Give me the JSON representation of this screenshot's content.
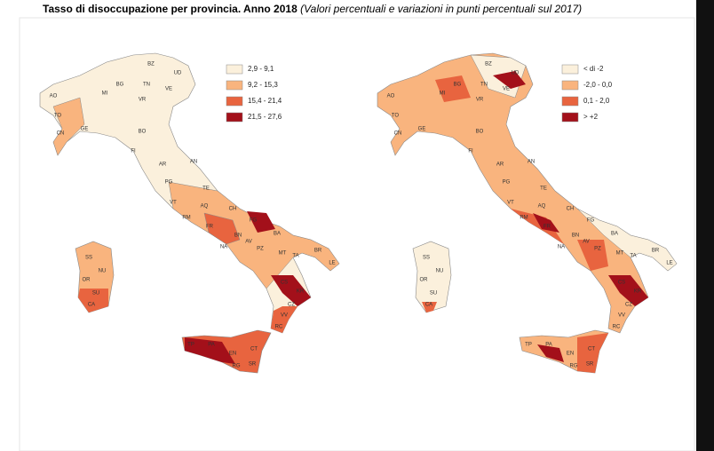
{
  "header": {
    "title": "Tasso di disoccupazione per provincia. Anno 2018",
    "subtitle": "(Valori percentuali e variazioni in punti percentuali sul 2017)"
  },
  "map_left": {
    "legend": [
      "2,9 - 9,1",
      "9,2 - 15,3",
      "15,4 - 21,4",
      "21,5 - 27,6"
    ],
    "labels": [
      "BZ",
      "TN",
      "AO",
      "TO",
      "CN",
      "MI",
      "BG",
      "VR",
      "VE",
      "UD",
      "GE",
      "BO",
      "FI",
      "AR",
      "PG",
      "AN",
      "TE",
      "VT",
      "RM",
      "AQ",
      "CH",
      "FR",
      "FG",
      "BA",
      "NA",
      "BN",
      "AV",
      "PZ",
      "MT",
      "TA",
      "BR",
      "LE",
      "CS",
      "KR",
      "CZ",
      "VV",
      "RC",
      "PA",
      "TP",
      "CT",
      "SR",
      "RG",
      "EN",
      "SS",
      "NU",
      "OR",
      "SU",
      "CA"
    ]
  },
  "map_right": {
    "legend": [
      "< di -2",
      "-2,0 - 0,0",
      "0,1 - 2,0",
      "> +2"
    ],
    "labels": [
      "BZ",
      "TN",
      "AO",
      "TO",
      "CN",
      "MI",
      "BG",
      "VR",
      "VE",
      "UD",
      "GE",
      "BO",
      "FI",
      "AR",
      "PG",
      "AN",
      "TE",
      "VT",
      "RM",
      "AQ",
      "CH",
      "FR",
      "FG",
      "BA",
      "NA",
      "BN",
      "AV",
      "PZ",
      "MT",
      "TA",
      "BR",
      "LE",
      "CS",
      "KR",
      "CZ",
      "VV",
      "RC",
      "PA",
      "TP",
      "CT",
      "SR",
      "RG",
      "EN",
      "SS",
      "NU",
      "OR",
      "SU",
      "CA"
    ]
  }
}
